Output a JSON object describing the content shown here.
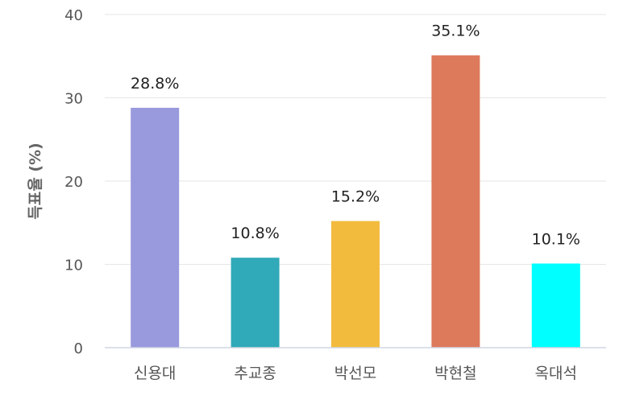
{
  "chart_data": {
    "type": "bar",
    "categories": [
      "신용대",
      "추교종",
      "박선모",
      "박현철",
      "옥대석"
    ],
    "values": [
      28.8,
      10.8,
      15.2,
      35.1,
      10.1
    ],
    "data_labels": [
      "28.8%",
      "10.8%",
      "15.2%",
      "35.1%",
      "10.1%"
    ],
    "colors": [
      "#9999dd",
      "#30a9b8",
      "#f3bb3e",
      "#dd7a5c",
      "#00ffff"
    ],
    "title": "",
    "xlabel": "",
    "ylabel": "득표율 (%)",
    "ylim": [
      0,
      40
    ],
    "yticks": [
      0,
      10,
      20,
      30,
      40
    ],
    "grid": true,
    "legend": "none"
  }
}
